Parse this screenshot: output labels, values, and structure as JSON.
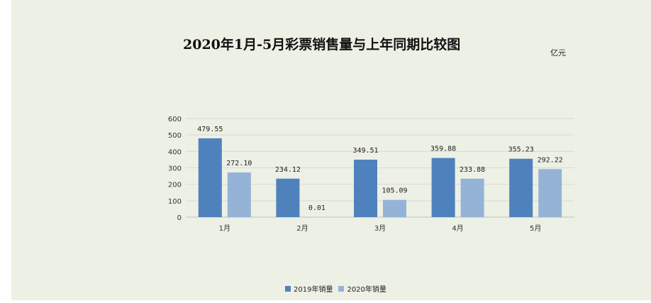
{
  "chart_data": {
    "type": "bar",
    "title": "2020年1月-5月彩票销售量与上年同期比较图",
    "unit": "亿元",
    "categories": [
      "1月",
      "2月",
      "3月",
      "4月",
      "5月"
    ],
    "series": [
      {
        "name": "2019年销量",
        "color": "#4f81bd",
        "values": [
          479.55,
          234.12,
          349.51,
          359.88,
          355.23
        ],
        "labels": [
          "479.55",
          "234.12",
          "349.51",
          "359.88",
          "355.23"
        ]
      },
      {
        "name": "2020年销量",
        "color": "#95b3d7",
        "values": [
          272.1,
          0.01,
          105.09,
          233.88,
          292.22
        ],
        "labels": [
          "272.10",
          "0.01",
          "105.09",
          "233.88",
          "292.22"
        ]
      }
    ],
    "ylim": [
      0,
      600
    ],
    "yticks": [
      0,
      100,
      200,
      300,
      400,
      500,
      600
    ],
    "grid": true,
    "legend_position": "bottom"
  }
}
